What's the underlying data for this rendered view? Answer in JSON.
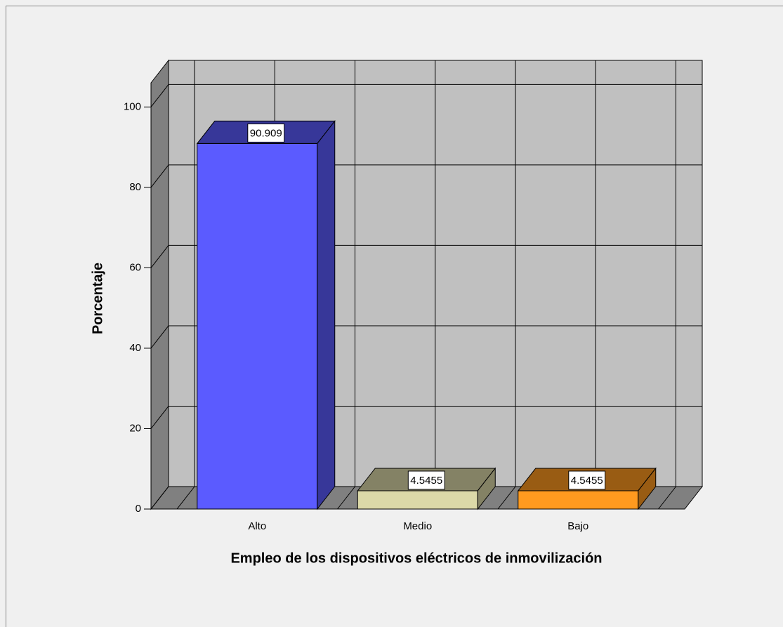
{
  "chart_data": {
    "type": "bar3d",
    "xlabel": "Empleo de los dispositivos eléctricos de inmovilización",
    "ylabel": "Porcentaje",
    "categories": [
      "Alto",
      "Medio",
      "Bajo"
    ],
    "values": [
      90.909,
      4.5455,
      4.5455
    ],
    "colors": [
      "#5b5bff",
      "#dcd9a8",
      "#ff9a1f"
    ],
    "ylim": [
      0,
      106
    ],
    "yticks": [
      0,
      20,
      40,
      60,
      80,
      100
    ],
    "grid": true
  }
}
